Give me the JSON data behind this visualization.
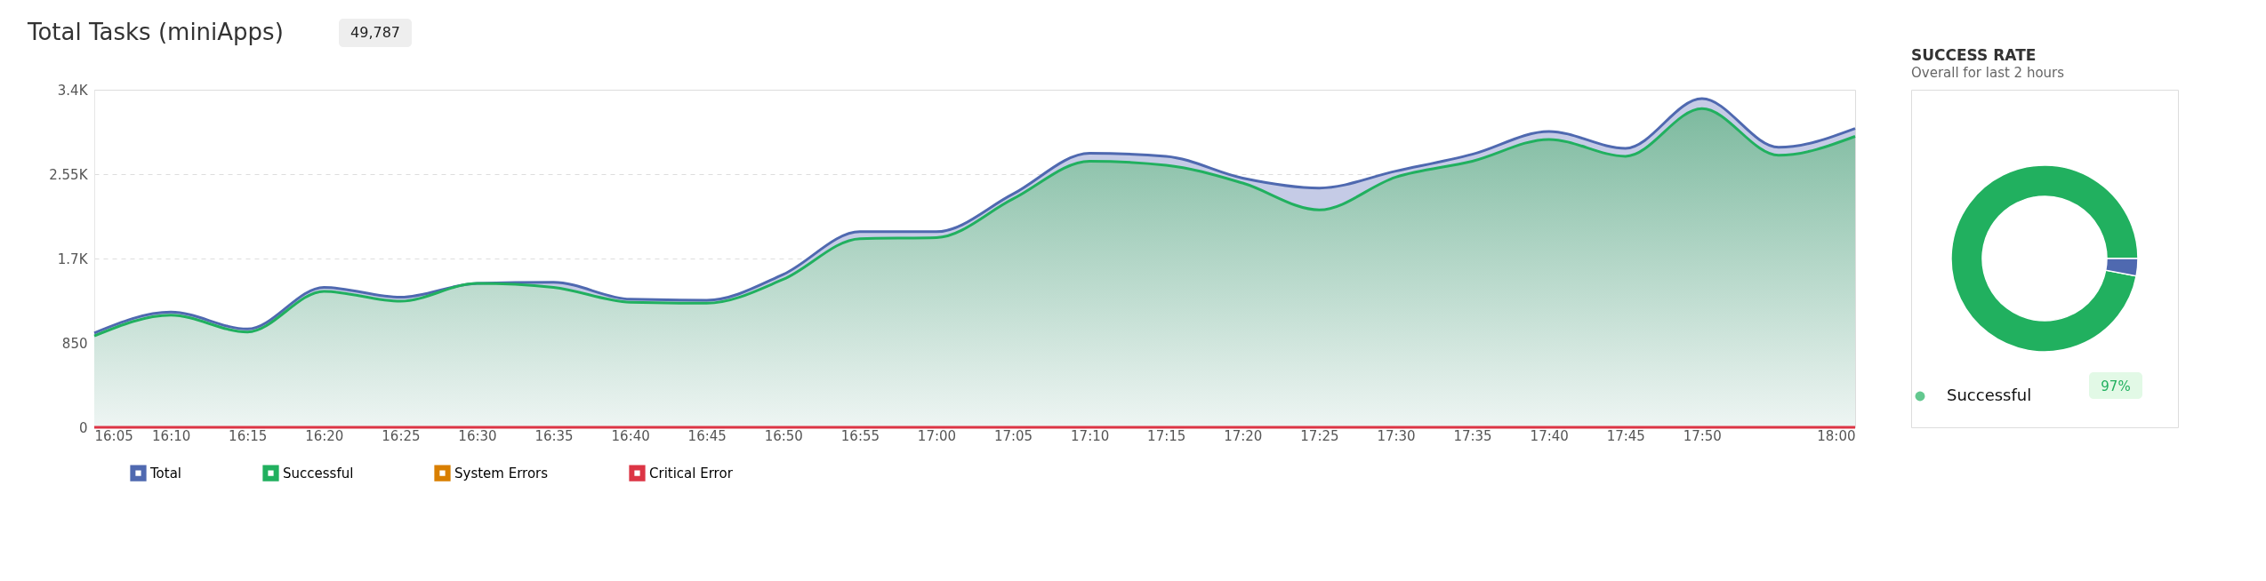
{
  "chart_data": [
    {
      "type": "area",
      "title": "Total Tasks (miniApps)",
      "annotations": [
        "49,787"
      ],
      "x": [
        16.0833,
        16.1667,
        16.25,
        16.3333,
        16.4167,
        16.5,
        16.5833,
        16.6667,
        16.75,
        16.8333,
        16.9167,
        17,
        17.0833,
        17.1667,
        17.25,
        17.3333,
        17.4167,
        17.5,
        17.5833,
        17.6667,
        17.75,
        17.8333,
        17.9167,
        18
      ],
      "series": [
        {
          "name": "Total",
          "type": "area",
          "color": "#4f69b0",
          "values": [
            950,
            1160,
            990,
            1410,
            1310,
            1450,
            1460,
            1290,
            1280,
            1540,
            1970,
            1970,
            2350,
            2760,
            2730,
            2510,
            2410,
            2580,
            2750,
            2980,
            2810,
            3310,
            2820,
            3010
          ]
        },
        {
          "name": "Successful",
          "type": "area",
          "color": "#21b05f",
          "values": [
            920,
            1130,
            960,
            1370,
            1270,
            1450,
            1410,
            1260,
            1250,
            1490,
            1900,
            1910,
            2300,
            2680,
            2640,
            2460,
            2190,
            2520,
            2680,
            2900,
            2730,
            3210,
            2740,
            2930
          ]
        },
        {
          "name": "System Errors",
          "type": "line",
          "color": "#d97f00",
          "values": [
            null,
            null,
            null,
            null,
            null,
            null,
            null,
            null,
            null,
            null,
            null,
            null,
            null,
            null,
            null,
            null,
            null,
            null,
            null,
            null,
            null,
            null,
            null,
            null
          ]
        },
        {
          "name": "Critical Error",
          "type": "line",
          "color": "#dc3545",
          "values": [
            0,
            0,
            0,
            0,
            0,
            0,
            0,
            0,
            0,
            0,
            0,
            0,
            0,
            0,
            0,
            0,
            0,
            0,
            0,
            0,
            0,
            0,
            0,
            0
          ]
        }
      ],
      "xlim": [
        16.0833,
        18
      ],
      "xticks": [
        {
          "value": 16.0833,
          "label": "16:05"
        },
        {
          "value": 16.1667,
          "label": "16:10"
        },
        {
          "value": 16.25,
          "label": "16:15"
        },
        {
          "value": 16.3333,
          "label": "16:20"
        },
        {
          "value": 16.4167,
          "label": "16:25"
        },
        {
          "value": 16.5,
          "label": "16:30"
        },
        {
          "value": 16.5833,
          "label": "16:35"
        },
        {
          "value": 16.6667,
          "label": "16:40"
        },
        {
          "value": 16.75,
          "label": "16:45"
        },
        {
          "value": 16.8333,
          "label": "16:50"
        },
        {
          "value": 16.9167,
          "label": "16:55"
        },
        {
          "value": 17,
          "label": "17:00"
        },
        {
          "value": 17.0833,
          "label": "17:05"
        },
        {
          "value": 17.1667,
          "label": "17:10"
        },
        {
          "value": 17.25,
          "label": "17:15"
        },
        {
          "value": 17.3333,
          "label": "17:20"
        },
        {
          "value": 17.4167,
          "label": "17:25"
        },
        {
          "value": 17.5,
          "label": "17:30"
        },
        {
          "value": 17.5833,
          "label": "17:35"
        },
        {
          "value": 17.6667,
          "label": "17:40"
        },
        {
          "value": 17.75,
          "label": "17:45"
        },
        {
          "value": 17.8333,
          "label": "17:50"
        },
        {
          "value": 18,
          "label": "18:00"
        }
      ],
      "ylim": [
        0,
        3400
      ],
      "yticks": [
        0,
        850,
        {
          "value": 1700,
          "label": "1.7K"
        },
        {
          "value": 2550,
          "label": "2.55K"
        },
        {
          "value": 3400,
          "label": "3.4K"
        }
      ],
      "grid": "y",
      "legend": "bottom"
    },
    {
      "type": "donut",
      "title": "SUCCESS RATE",
      "subtitle": "Overall for last 2 hours",
      "categories": [
        "Successful",
        null
      ],
      "values": [
        97,
        3
      ],
      "colors": [
        "#21b05f",
        "#4f69b0"
      ],
      "value_labels": [
        "97%",
        null
      ]
    }
  ]
}
